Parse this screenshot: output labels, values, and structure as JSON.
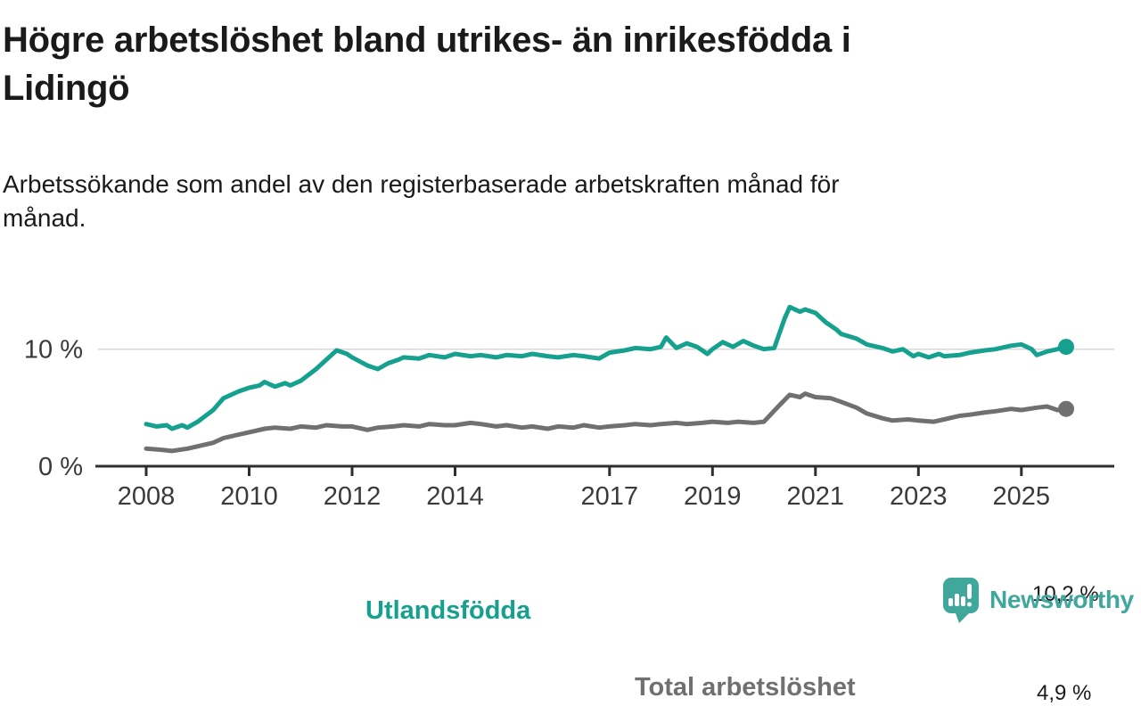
{
  "title_lines": [
    "Högre arbetslöshet bland utrikes- än inrikesfödda i",
    "Lidingö"
  ],
  "subtitle_lines": [
    "Arbetssökande som andel av den registerbaserade arbetskraften månad för",
    "månad."
  ],
  "branding": {
    "logo_text": "Newsworthy",
    "logo_color": "#3fa79c"
  },
  "colors": {
    "grid": "#d9d9d9",
    "axis": "#2e2e2e",
    "axis_text": "#3a3a3a",
    "text": "#1a1a1a"
  },
  "chart_data": {
    "type": "line",
    "title": "Högre arbetslöshet bland utrikes- än inrikesfödda i Lidingö",
    "subtitle": "Arbetssökande som andel av den registerbaserade arbetskraften månad för månad.",
    "unit": "%",
    "grid": "horizontal-only",
    "legend_position": "inline-labels",
    "x_ticks": [
      2008,
      2010,
      2012,
      2014,
      2017,
      2019,
      2021,
      2023,
      2025
    ],
    "y_ticks": [
      {
        "value": 0,
        "label": "0 %",
        "grid": false
      },
      {
        "value": 10,
        "label": "10 %",
        "grid": true
      }
    ],
    "x_range": [
      2008,
      2025.87
    ],
    "y_range": [
      0,
      14
    ],
    "series": [
      {
        "name": "Utlandsfödda",
        "color": "#16a08e",
        "end_label": "10,2 %",
        "end_value": 10.2,
        "points": [
          [
            2008.0,
            3.6
          ],
          [
            2008.2,
            3.4
          ],
          [
            2008.4,
            3.5
          ],
          [
            2008.5,
            3.2
          ],
          [
            2008.7,
            3.5
          ],
          [
            2008.8,
            3.3
          ],
          [
            2009.0,
            3.8
          ],
          [
            2009.3,
            4.8
          ],
          [
            2009.5,
            5.8
          ],
          [
            2009.8,
            6.4
          ],
          [
            2010.0,
            6.7
          ],
          [
            2010.2,
            6.9
          ],
          [
            2010.3,
            7.2
          ],
          [
            2010.5,
            6.8
          ],
          [
            2010.7,
            7.1
          ],
          [
            2010.8,
            6.9
          ],
          [
            2011.0,
            7.3
          ],
          [
            2011.3,
            8.3
          ],
          [
            2011.5,
            9.1
          ],
          [
            2011.7,
            9.9
          ],
          [
            2011.9,
            9.6
          ],
          [
            2012.0,
            9.3
          ],
          [
            2012.3,
            8.6
          ],
          [
            2012.5,
            8.3
          ],
          [
            2012.7,
            8.8
          ],
          [
            2012.9,
            9.1
          ],
          [
            2013.0,
            9.3
          ],
          [
            2013.3,
            9.2
          ],
          [
            2013.5,
            9.5
          ],
          [
            2013.8,
            9.3
          ],
          [
            2014.0,
            9.6
          ],
          [
            2014.3,
            9.4
          ],
          [
            2014.5,
            9.5
          ],
          [
            2014.8,
            9.3
          ],
          [
            2015.0,
            9.5
          ],
          [
            2015.3,
            9.4
          ],
          [
            2015.5,
            9.6
          ],
          [
            2015.8,
            9.4
          ],
          [
            2016.0,
            9.3
          ],
          [
            2016.3,
            9.5
          ],
          [
            2016.5,
            9.4
          ],
          [
            2016.8,
            9.2
          ],
          [
            2017.0,
            9.7
          ],
          [
            2017.3,
            9.9
          ],
          [
            2017.5,
            10.1
          ],
          [
            2017.8,
            10.0
          ],
          [
            2018.0,
            10.2
          ],
          [
            2018.1,
            11.0
          ],
          [
            2018.3,
            10.1
          ],
          [
            2018.5,
            10.5
          ],
          [
            2018.7,
            10.2
          ],
          [
            2018.9,
            9.6
          ],
          [
            2019.0,
            10.0
          ],
          [
            2019.2,
            10.6
          ],
          [
            2019.4,
            10.2
          ],
          [
            2019.6,
            10.7
          ],
          [
            2019.8,
            10.3
          ],
          [
            2020.0,
            10.0
          ],
          [
            2020.2,
            10.1
          ],
          [
            2020.4,
            12.6
          ],
          [
            2020.5,
            13.6
          ],
          [
            2020.7,
            13.2
          ],
          [
            2020.8,
            13.4
          ],
          [
            2021.0,
            13.1
          ],
          [
            2021.2,
            12.3
          ],
          [
            2021.4,
            11.7
          ],
          [
            2021.5,
            11.3
          ],
          [
            2021.8,
            10.9
          ],
          [
            2022.0,
            10.4
          ],
          [
            2022.3,
            10.1
          ],
          [
            2022.5,
            9.8
          ],
          [
            2022.7,
            10.0
          ],
          [
            2022.9,
            9.4
          ],
          [
            2023.0,
            9.6
          ],
          [
            2023.2,
            9.3
          ],
          [
            2023.4,
            9.6
          ],
          [
            2023.5,
            9.4
          ],
          [
            2023.8,
            9.5
          ],
          [
            2024.0,
            9.7
          ],
          [
            2024.3,
            9.9
          ],
          [
            2024.5,
            10.0
          ],
          [
            2024.8,
            10.3
          ],
          [
            2025.0,
            10.4
          ],
          [
            2025.2,
            10.0
          ],
          [
            2025.3,
            9.5
          ],
          [
            2025.5,
            9.8
          ],
          [
            2025.7,
            10.0
          ],
          [
            2025.87,
            10.2
          ]
        ]
      },
      {
        "name": "Total arbetslöshet",
        "color": "#707070",
        "end_label": "4,9 %",
        "end_value": 4.9,
        "points": [
          [
            2008.0,
            1.5
          ],
          [
            2008.3,
            1.4
          ],
          [
            2008.5,
            1.3
          ],
          [
            2008.8,
            1.5
          ],
          [
            2009.0,
            1.7
          ],
          [
            2009.3,
            2.0
          ],
          [
            2009.5,
            2.4
          ],
          [
            2009.8,
            2.7
          ],
          [
            2010.0,
            2.9
          ],
          [
            2010.3,
            3.2
          ],
          [
            2010.5,
            3.3
          ],
          [
            2010.8,
            3.2
          ],
          [
            2011.0,
            3.4
          ],
          [
            2011.3,
            3.3
          ],
          [
            2011.5,
            3.5
          ],
          [
            2011.8,
            3.4
          ],
          [
            2012.0,
            3.4
          ],
          [
            2012.3,
            3.1
          ],
          [
            2012.5,
            3.3
          ],
          [
            2012.8,
            3.4
          ],
          [
            2013.0,
            3.5
          ],
          [
            2013.3,
            3.4
          ],
          [
            2013.5,
            3.6
          ],
          [
            2013.8,
            3.5
          ],
          [
            2014.0,
            3.5
          ],
          [
            2014.3,
            3.7
          ],
          [
            2014.5,
            3.6
          ],
          [
            2014.8,
            3.4
          ],
          [
            2015.0,
            3.5
          ],
          [
            2015.3,
            3.3
          ],
          [
            2015.5,
            3.4
          ],
          [
            2015.8,
            3.2
          ],
          [
            2016.0,
            3.4
          ],
          [
            2016.3,
            3.3
          ],
          [
            2016.5,
            3.5
          ],
          [
            2016.8,
            3.3
          ],
          [
            2017.0,
            3.4
          ],
          [
            2017.3,
            3.5
          ],
          [
            2017.5,
            3.6
          ],
          [
            2017.8,
            3.5
          ],
          [
            2018.0,
            3.6
          ],
          [
            2018.3,
            3.7
          ],
          [
            2018.5,
            3.6
          ],
          [
            2018.8,
            3.7
          ],
          [
            2019.0,
            3.8
          ],
          [
            2019.3,
            3.7
          ],
          [
            2019.5,
            3.8
          ],
          [
            2019.8,
            3.7
          ],
          [
            2020.0,
            3.8
          ],
          [
            2020.3,
            5.2
          ],
          [
            2020.5,
            6.1
          ],
          [
            2020.7,
            5.9
          ],
          [
            2020.8,
            6.2
          ],
          [
            2021.0,
            5.9
          ],
          [
            2021.3,
            5.8
          ],
          [
            2021.5,
            5.5
          ],
          [
            2021.8,
            5.0
          ],
          [
            2022.0,
            4.5
          ],
          [
            2022.3,
            4.1
          ],
          [
            2022.5,
            3.9
          ],
          [
            2022.8,
            4.0
          ],
          [
            2023.0,
            3.9
          ],
          [
            2023.3,
            3.8
          ],
          [
            2023.5,
            4.0
          ],
          [
            2023.8,
            4.3
          ],
          [
            2024.0,
            4.4
          ],
          [
            2024.3,
            4.6
          ],
          [
            2024.5,
            4.7
          ],
          [
            2024.8,
            4.9
          ],
          [
            2025.0,
            4.8
          ],
          [
            2025.3,
            5.0
          ],
          [
            2025.5,
            5.1
          ],
          [
            2025.7,
            4.8
          ],
          [
            2025.87,
            4.9
          ]
        ]
      }
    ]
  }
}
